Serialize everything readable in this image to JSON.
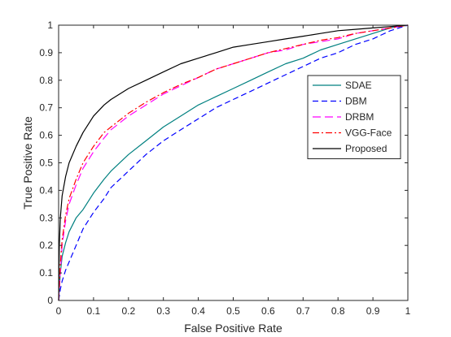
{
  "chart_data": {
    "type": "line",
    "title": "",
    "xlabel": "False Positive Rate",
    "ylabel": "True Positive Rate",
    "xlim": [
      0,
      1
    ],
    "ylim": [
      0,
      1
    ],
    "xticks": [
      "0",
      "0.1",
      "0.2",
      "0.3",
      "0.4",
      "0.5",
      "0.6",
      "0.7",
      "0.8",
      "0.9",
      "1"
    ],
    "yticks": [
      "0",
      "0.1",
      "0.2",
      "0.3",
      "0.4",
      "0.5",
      "0.6",
      "0.7",
      "0.8",
      "0.9",
      "1"
    ],
    "grid": false,
    "legend_position": "right",
    "series": [
      {
        "name": "SDAE",
        "color": "#008080",
        "dash": "solid",
        "x": [
          0,
          0.005,
          0.01,
          0.02,
          0.03,
          0.05,
          0.07,
          0.1,
          0.13,
          0.15,
          0.2,
          0.25,
          0.3,
          0.35,
          0.4,
          0.45,
          0.5,
          0.55,
          0.6,
          0.65,
          0.7,
          0.75,
          0.8,
          0.85,
          0.9,
          0.95,
          1.0
        ],
        "y": [
          0,
          0.1,
          0.16,
          0.21,
          0.25,
          0.3,
          0.33,
          0.39,
          0.44,
          0.47,
          0.53,
          0.58,
          0.63,
          0.67,
          0.71,
          0.74,
          0.77,
          0.8,
          0.83,
          0.86,
          0.88,
          0.91,
          0.93,
          0.95,
          0.97,
          0.99,
          1.0
        ]
      },
      {
        "name": "DBM",
        "color": "#0000ff",
        "dash": "dashed",
        "x": [
          0,
          0.005,
          0.01,
          0.02,
          0.03,
          0.05,
          0.07,
          0.1,
          0.13,
          0.15,
          0.2,
          0.25,
          0.3,
          0.35,
          0.4,
          0.45,
          0.5,
          0.55,
          0.6,
          0.65,
          0.7,
          0.75,
          0.8,
          0.85,
          0.9,
          0.95,
          1.0
        ],
        "y": [
          0,
          0.04,
          0.07,
          0.11,
          0.14,
          0.2,
          0.26,
          0.32,
          0.37,
          0.41,
          0.47,
          0.53,
          0.58,
          0.62,
          0.66,
          0.7,
          0.73,
          0.76,
          0.79,
          0.82,
          0.85,
          0.88,
          0.9,
          0.93,
          0.95,
          0.98,
          1.0
        ]
      },
      {
        "name": "DRBM",
        "color": "#ff00ff",
        "dash": "longdash",
        "x": [
          0,
          0.005,
          0.01,
          0.02,
          0.03,
          0.05,
          0.07,
          0.1,
          0.13,
          0.15,
          0.2,
          0.25,
          0.3,
          0.35,
          0.4,
          0.45,
          0.5,
          0.55,
          0.6,
          0.65,
          0.7,
          0.75,
          0.8,
          0.85,
          0.9,
          0.95,
          1.0
        ],
        "y": [
          0,
          0.1,
          0.2,
          0.29,
          0.35,
          0.42,
          0.48,
          0.54,
          0.59,
          0.62,
          0.67,
          0.71,
          0.75,
          0.78,
          0.81,
          0.84,
          0.86,
          0.88,
          0.9,
          0.91,
          0.93,
          0.94,
          0.95,
          0.97,
          0.98,
          0.99,
          1.0
        ]
      },
      {
        "name": "VGG-Face",
        "color": "#ff0000",
        "dash": "dashdot",
        "x": [
          0,
          0.005,
          0.01,
          0.02,
          0.03,
          0.05,
          0.07,
          0.1,
          0.13,
          0.15,
          0.2,
          0.25,
          0.3,
          0.35,
          0.4,
          0.45,
          0.5,
          0.55,
          0.6,
          0.65,
          0.7,
          0.75,
          0.8,
          0.85,
          0.9,
          0.95,
          1.0
        ],
        "y": [
          0,
          0.13,
          0.22,
          0.31,
          0.37,
          0.44,
          0.5,
          0.56,
          0.61,
          0.63,
          0.68,
          0.72,
          0.755,
          0.785,
          0.81,
          0.84,
          0.86,
          0.88,
          0.9,
          0.915,
          0.93,
          0.945,
          0.955,
          0.97,
          0.98,
          0.99,
          1.0
        ]
      },
      {
        "name": "Proposed",
        "color": "#000000",
        "dash": "solid",
        "x": [
          0,
          0.002,
          0.005,
          0.01,
          0.02,
          0.03,
          0.05,
          0.07,
          0.1,
          0.13,
          0.15,
          0.2,
          0.25,
          0.3,
          0.35,
          0.4,
          0.45,
          0.5,
          0.55,
          0.6,
          0.65,
          0.7,
          0.75,
          0.8,
          0.85,
          0.9,
          0.95,
          1.0
        ],
        "y": [
          0,
          0.2,
          0.3,
          0.38,
          0.45,
          0.5,
          0.56,
          0.61,
          0.67,
          0.71,
          0.73,
          0.77,
          0.8,
          0.83,
          0.86,
          0.88,
          0.9,
          0.92,
          0.93,
          0.94,
          0.95,
          0.96,
          0.97,
          0.98,
          0.985,
          0.99,
          0.995,
          1.0
        ]
      }
    ]
  }
}
